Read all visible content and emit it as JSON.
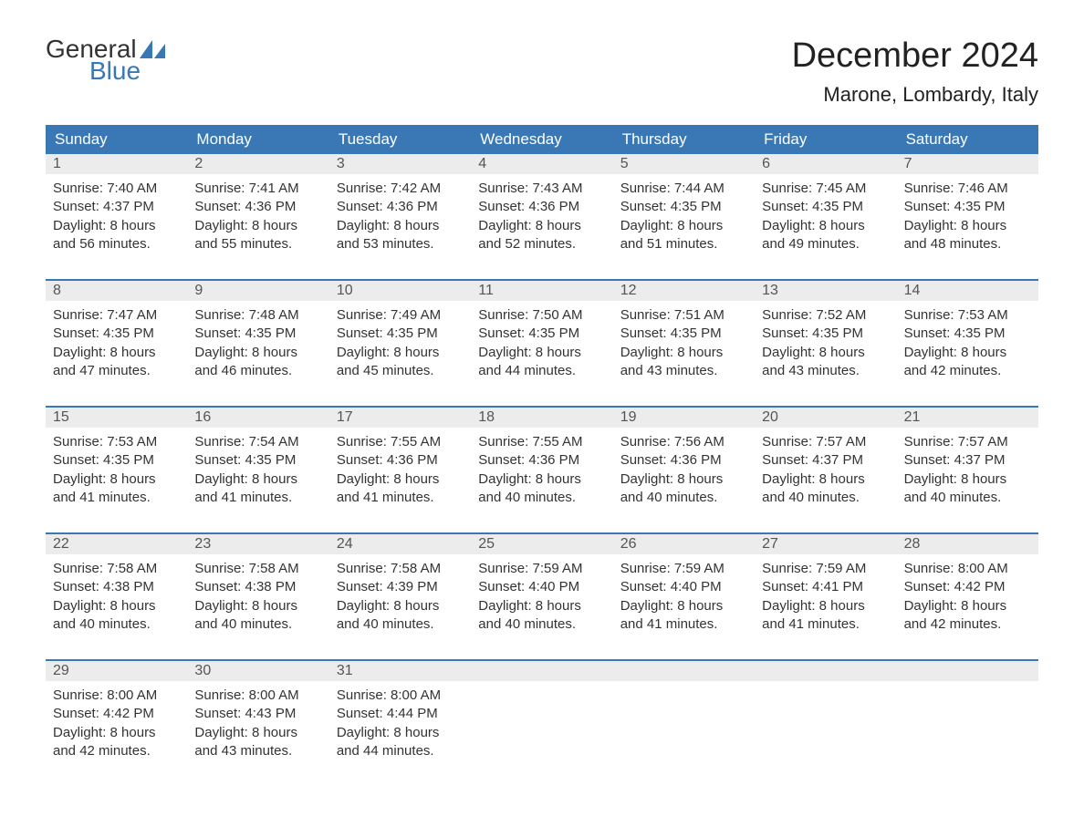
{
  "logo": {
    "word1": "General",
    "word2": "Blue",
    "sail_color": "#3a78b5"
  },
  "title": "December 2024",
  "location": "Marone, Lombardy, Italy",
  "colors": {
    "header_bg": "#3a78b5",
    "header_text": "#ffffff",
    "daynum_bg": "#ececec",
    "daynum_text": "#555555",
    "body_text": "#333333",
    "week_border": "#3a78b5",
    "page_bg": "#ffffff"
  },
  "typography": {
    "title_fontsize": 38,
    "location_fontsize": 22,
    "weekday_fontsize": 17,
    "daynum_fontsize": 16,
    "cell_fontsize": 15,
    "font_family": "Arial, Helvetica, sans-serif"
  },
  "weekdays": [
    "Sunday",
    "Monday",
    "Tuesday",
    "Wednesday",
    "Thursday",
    "Friday",
    "Saturday"
  ],
  "weeks": [
    [
      {
        "n": "1",
        "sr": "Sunrise: 7:40 AM",
        "ss": "Sunset: 4:37 PM",
        "d1": "Daylight: 8 hours",
        "d2": "and 56 minutes."
      },
      {
        "n": "2",
        "sr": "Sunrise: 7:41 AM",
        "ss": "Sunset: 4:36 PM",
        "d1": "Daylight: 8 hours",
        "d2": "and 55 minutes."
      },
      {
        "n": "3",
        "sr": "Sunrise: 7:42 AM",
        "ss": "Sunset: 4:36 PM",
        "d1": "Daylight: 8 hours",
        "d2": "and 53 minutes."
      },
      {
        "n": "4",
        "sr": "Sunrise: 7:43 AM",
        "ss": "Sunset: 4:36 PM",
        "d1": "Daylight: 8 hours",
        "d2": "and 52 minutes."
      },
      {
        "n": "5",
        "sr": "Sunrise: 7:44 AM",
        "ss": "Sunset: 4:35 PM",
        "d1": "Daylight: 8 hours",
        "d2": "and 51 minutes."
      },
      {
        "n": "6",
        "sr": "Sunrise: 7:45 AM",
        "ss": "Sunset: 4:35 PM",
        "d1": "Daylight: 8 hours",
        "d2": "and 49 minutes."
      },
      {
        "n": "7",
        "sr": "Sunrise: 7:46 AM",
        "ss": "Sunset: 4:35 PM",
        "d1": "Daylight: 8 hours",
        "d2": "and 48 minutes."
      }
    ],
    [
      {
        "n": "8",
        "sr": "Sunrise: 7:47 AM",
        "ss": "Sunset: 4:35 PM",
        "d1": "Daylight: 8 hours",
        "d2": "and 47 minutes."
      },
      {
        "n": "9",
        "sr": "Sunrise: 7:48 AM",
        "ss": "Sunset: 4:35 PM",
        "d1": "Daylight: 8 hours",
        "d2": "and 46 minutes."
      },
      {
        "n": "10",
        "sr": "Sunrise: 7:49 AM",
        "ss": "Sunset: 4:35 PM",
        "d1": "Daylight: 8 hours",
        "d2": "and 45 minutes."
      },
      {
        "n": "11",
        "sr": "Sunrise: 7:50 AM",
        "ss": "Sunset: 4:35 PM",
        "d1": "Daylight: 8 hours",
        "d2": "and 44 minutes."
      },
      {
        "n": "12",
        "sr": "Sunrise: 7:51 AM",
        "ss": "Sunset: 4:35 PM",
        "d1": "Daylight: 8 hours",
        "d2": "and 43 minutes."
      },
      {
        "n": "13",
        "sr": "Sunrise: 7:52 AM",
        "ss": "Sunset: 4:35 PM",
        "d1": "Daylight: 8 hours",
        "d2": "and 43 minutes."
      },
      {
        "n": "14",
        "sr": "Sunrise: 7:53 AM",
        "ss": "Sunset: 4:35 PM",
        "d1": "Daylight: 8 hours",
        "d2": "and 42 minutes."
      }
    ],
    [
      {
        "n": "15",
        "sr": "Sunrise: 7:53 AM",
        "ss": "Sunset: 4:35 PM",
        "d1": "Daylight: 8 hours",
        "d2": "and 41 minutes."
      },
      {
        "n": "16",
        "sr": "Sunrise: 7:54 AM",
        "ss": "Sunset: 4:35 PM",
        "d1": "Daylight: 8 hours",
        "d2": "and 41 minutes."
      },
      {
        "n": "17",
        "sr": "Sunrise: 7:55 AM",
        "ss": "Sunset: 4:36 PM",
        "d1": "Daylight: 8 hours",
        "d2": "and 41 minutes."
      },
      {
        "n": "18",
        "sr": "Sunrise: 7:55 AM",
        "ss": "Sunset: 4:36 PM",
        "d1": "Daylight: 8 hours",
        "d2": "and 40 minutes."
      },
      {
        "n": "19",
        "sr": "Sunrise: 7:56 AM",
        "ss": "Sunset: 4:36 PM",
        "d1": "Daylight: 8 hours",
        "d2": "and 40 minutes."
      },
      {
        "n": "20",
        "sr": "Sunrise: 7:57 AM",
        "ss": "Sunset: 4:37 PM",
        "d1": "Daylight: 8 hours",
        "d2": "and 40 minutes."
      },
      {
        "n": "21",
        "sr": "Sunrise: 7:57 AM",
        "ss": "Sunset: 4:37 PM",
        "d1": "Daylight: 8 hours",
        "d2": "and 40 minutes."
      }
    ],
    [
      {
        "n": "22",
        "sr": "Sunrise: 7:58 AM",
        "ss": "Sunset: 4:38 PM",
        "d1": "Daylight: 8 hours",
        "d2": "and 40 minutes."
      },
      {
        "n": "23",
        "sr": "Sunrise: 7:58 AM",
        "ss": "Sunset: 4:38 PM",
        "d1": "Daylight: 8 hours",
        "d2": "and 40 minutes."
      },
      {
        "n": "24",
        "sr": "Sunrise: 7:58 AM",
        "ss": "Sunset: 4:39 PM",
        "d1": "Daylight: 8 hours",
        "d2": "and 40 minutes."
      },
      {
        "n": "25",
        "sr": "Sunrise: 7:59 AM",
        "ss": "Sunset: 4:40 PM",
        "d1": "Daylight: 8 hours",
        "d2": "and 40 minutes."
      },
      {
        "n": "26",
        "sr": "Sunrise: 7:59 AM",
        "ss": "Sunset: 4:40 PM",
        "d1": "Daylight: 8 hours",
        "d2": "and 41 minutes."
      },
      {
        "n": "27",
        "sr": "Sunrise: 7:59 AM",
        "ss": "Sunset: 4:41 PM",
        "d1": "Daylight: 8 hours",
        "d2": "and 41 minutes."
      },
      {
        "n": "28",
        "sr": "Sunrise: 8:00 AM",
        "ss": "Sunset: 4:42 PM",
        "d1": "Daylight: 8 hours",
        "d2": "and 42 minutes."
      }
    ],
    [
      {
        "n": "29",
        "sr": "Sunrise: 8:00 AM",
        "ss": "Sunset: 4:42 PM",
        "d1": "Daylight: 8 hours",
        "d2": "and 42 minutes."
      },
      {
        "n": "30",
        "sr": "Sunrise: 8:00 AM",
        "ss": "Sunset: 4:43 PM",
        "d1": "Daylight: 8 hours",
        "d2": "and 43 minutes."
      },
      {
        "n": "31",
        "sr": "Sunrise: 8:00 AM",
        "ss": "Sunset: 4:44 PM",
        "d1": "Daylight: 8 hours",
        "d2": "and 44 minutes."
      },
      null,
      null,
      null,
      null
    ]
  ]
}
